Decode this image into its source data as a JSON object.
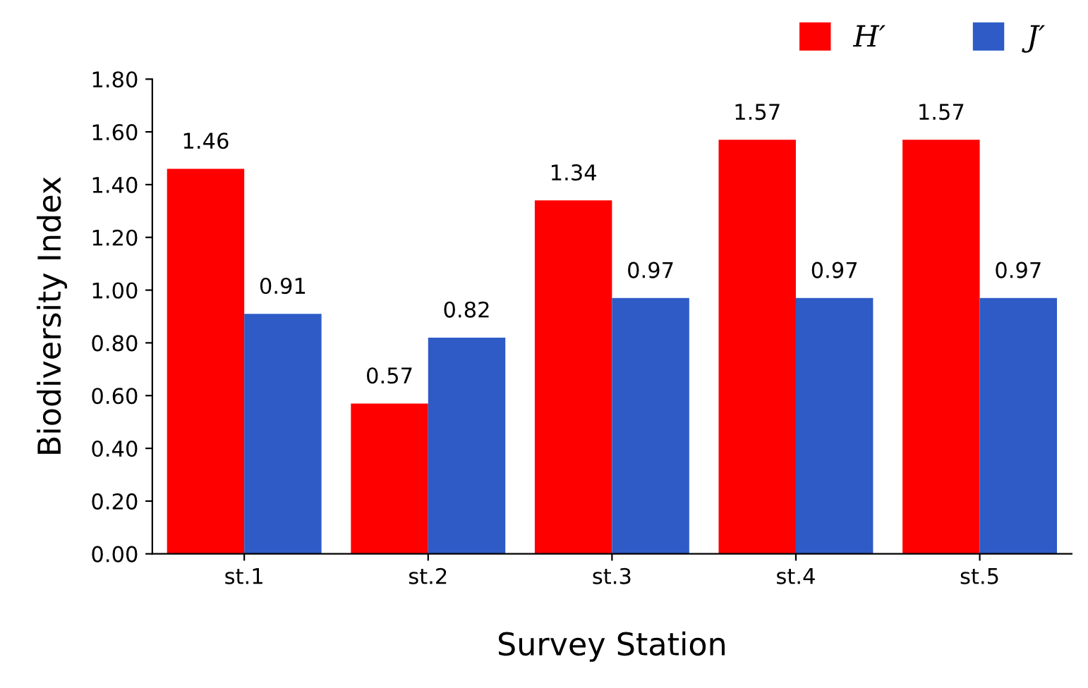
{
  "chart_data": {
    "type": "bar",
    "xlabel": "Survey Station",
    "ylabel": "Biodiversity Index",
    "categories": [
      "st.1",
      "st.2",
      "st.3",
      "st.4",
      "st.5"
    ],
    "series": [
      {
        "name": "H′",
        "color": "#ff0000",
        "values": [
          1.46,
          0.57,
          1.34,
          1.57,
          1.57
        ]
      },
      {
        "name": "J′",
        "color": "#2e5bc6",
        "values": [
          0.91,
          0.82,
          0.97,
          0.97,
          0.97
        ]
      }
    ],
    "ylim": [
      0,
      1.8
    ],
    "yticks": [
      {
        "value": 0,
        "label": "0.00"
      },
      {
        "value": 0.2,
        "label": "0.20"
      },
      {
        "value": 0.4,
        "label": "0.40"
      },
      {
        "value": 0.6,
        "label": "0.60"
      },
      {
        "value": 0.8,
        "label": "0.80"
      },
      {
        "value": 1.0,
        "label": "1.00"
      },
      {
        "value": 1.2,
        "label": "1.20"
      },
      {
        "value": 1.4,
        "label": "1.40"
      },
      {
        "value": 1.6,
        "label": "1.60"
      },
      {
        "value": 1.8,
        "label": "1.80"
      }
    ],
    "data_labels": true,
    "grid": false,
    "legend": "top right"
  }
}
